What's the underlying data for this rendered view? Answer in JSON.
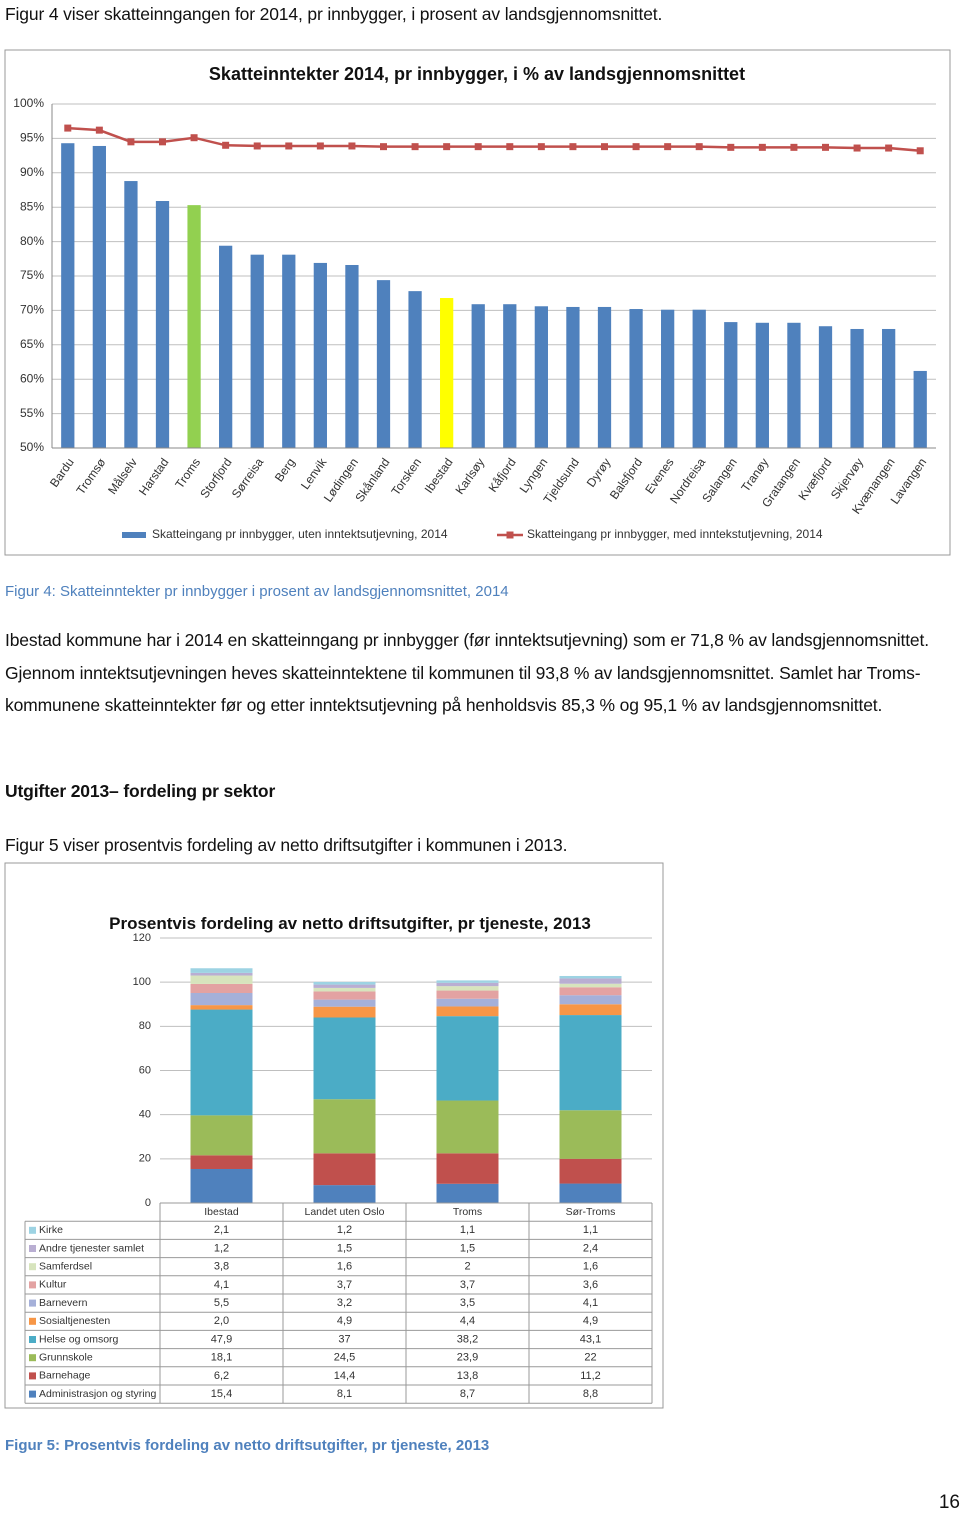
{
  "intro": "Figur 4 viser skatteinngangen for 2014, pr innbygger, i prosent av landsgjennomsnittet.",
  "chart_data": [
    {
      "type": "bar",
      "title": "Skatteinntekter  2014, pr innbygger, i % av landsgjennomsnittet",
      "categories": [
        "Bardu",
        "Tromsø",
        "Målselv",
        "Harstad",
        "Troms",
        "Storfjord",
        "Sørreisa",
        "Berg",
        "Lenvik",
        "Lødingen",
        "Skånland",
        "Torsken",
        "Ibestad",
        "Karlsøy",
        "Kåfjord",
        "Lyngen",
        "Tjeldsund",
        "Dyrøy",
        "Balsfjord",
        "Evenes",
        "Nordreisa",
        "Salangen",
        "Tranøy",
        "Gratangen",
        "Kvæfjord",
        "Skjervøy",
        "Kvænangen",
        "Lavangen"
      ],
      "series": [
        {
          "name": "Skatteingang pr innbygger, uten inntektsutjevning, 2014",
          "type": "bar",
          "color": "#4f81bd",
          "colors": [
            "#4f81bd",
            "#4f81bd",
            "#4f81bd",
            "#4f81bd",
            "#92d050",
            "#4f81bd",
            "#4f81bd",
            "#4f81bd",
            "#4f81bd",
            "#4f81bd",
            "#4f81bd",
            "#4f81bd",
            "#ffff00",
            "#4f81bd",
            "#4f81bd",
            "#4f81bd",
            "#4f81bd",
            "#4f81bd",
            "#4f81bd",
            "#4f81bd",
            "#4f81bd",
            "#4f81bd",
            "#4f81bd",
            "#4f81bd",
            "#4f81bd",
            "#4f81bd",
            "#4f81bd",
            "#4f81bd"
          ],
          "values": [
            94.3,
            93.9,
            88.8,
            85.9,
            85.3,
            79.4,
            78.1,
            78.1,
            76.9,
            76.6,
            74.4,
            72.8,
            71.8,
            70.9,
            70.9,
            70.6,
            70.5,
            70.5,
            70.2,
            70.1,
            70.1,
            68.3,
            68.2,
            68.2,
            67.7,
            67.3,
            67.3,
            61.2
          ]
        },
        {
          "name": "Skatteingang pr innbygger, med inntekstutjevning,  2014",
          "type": "line",
          "color": "#c0504d",
          "values": [
            96.5,
            96.2,
            94.5,
            94.5,
            95.1,
            94.0,
            93.9,
            93.9,
            93.9,
            93.9,
            93.8,
            93.8,
            93.8,
            93.8,
            93.8,
            93.8,
            93.8,
            93.8,
            93.8,
            93.8,
            93.8,
            93.7,
            93.7,
            93.7,
            93.7,
            93.6,
            93.6,
            93.2
          ]
        }
      ],
      "ylim": [
        50,
        100
      ],
      "yticks": [
        {
          "value": 50,
          "label": "50%"
        },
        {
          "value": 55,
          "label": "55%"
        },
        {
          "value": 60,
          "label": "60%"
        },
        {
          "value": 65,
          "label": "65%"
        },
        {
          "value": 70,
          "label": "70%"
        },
        {
          "value": 75,
          "label": "75%"
        },
        {
          "value": 80,
          "label": "80%"
        },
        {
          "value": 85,
          "label": "85%"
        },
        {
          "value": 90,
          "label": "90%"
        },
        {
          "value": 95,
          "label": "95%"
        },
        {
          "value": 100,
          "label": "100%"
        }
      ],
      "grid": true,
      "legend": "bottom"
    },
    {
      "type": "stacked_bar",
      "title": "Prosentvis fordeling av netto driftsutgifter, pr tjeneste, 2013",
      "categories": [
        "Ibestad",
        "Landet uten Oslo",
        "Troms",
        "Sør-Troms"
      ],
      "series": [
        {
          "name": "Administrasjon og styring",
          "color": "#4f81bd",
          "values": [
            15.4,
            8.1,
            8.7,
            8.8
          ],
          "value_labels": [
            "15,4",
            "8,1",
            "8,7",
            "8,8"
          ]
        },
        {
          "name": "Barnehage",
          "color": "#c0504d",
          "values": [
            6.2,
            14.4,
            13.8,
            11.2
          ],
          "value_labels": [
            "6,2",
            "14,4",
            "13,8",
            "11,2"
          ]
        },
        {
          "name": "Grunnskole",
          "color": "#9bbb59",
          "values": [
            18.1,
            24.5,
            23.9,
            22
          ],
          "value_labels": [
            "18,1",
            "24,5",
            "23,9",
            "22"
          ]
        },
        {
          "name": "Helse og omsorg",
          "color": "#4bacc6",
          "values": [
            47.9,
            37,
            38.2,
            43.1
          ],
          "value_labels": [
            "47,9",
            "37",
            "38,2",
            "43,1"
          ]
        },
        {
          "name": "Sosialtjenesten",
          "color": "#f79646",
          "values": [
            2.0,
            4.9,
            4.4,
            4.9
          ],
          "value_labels": [
            "2,0",
            "4,9",
            "4,4",
            "4,9"
          ]
        },
        {
          "name": "Barnevern",
          "color": "#a5b0d9",
          "values": [
            5.5,
            3.2,
            3.5,
            4.1
          ],
          "value_labels": [
            "5,5",
            "3,2",
            "3,5",
            "4,1"
          ]
        },
        {
          "name": "Kultur",
          "color": "#e3a2a2",
          "values": [
            4.1,
            3.7,
            3.7,
            3.6
          ],
          "value_labels": [
            "4,1",
            "3,7",
            "3,7",
            "3,6"
          ]
        },
        {
          "name": "Samferdsel",
          "color": "#d7e4bd",
          "values": [
            3.8,
            1.6,
            2,
            1.6
          ],
          "value_labels": [
            "3,8",
            "1,6",
            "2",
            "1,6"
          ]
        },
        {
          "name": "Andre tjenester samlet",
          "color": "#b9aed2",
          "values": [
            1.2,
            1.5,
            1.5,
            2.4
          ],
          "value_labels": [
            "1,2",
            "1,5",
            "1,5",
            "2,4"
          ]
        },
        {
          "name": "Kirke",
          "color": "#9dd3e3",
          "values": [
            2.1,
            1.2,
            1.1,
            1.1
          ],
          "value_labels": [
            "2,1",
            "1,2",
            "1,1",
            "1,1"
          ]
        }
      ],
      "ylim": [
        0,
        120
      ],
      "yticks": [
        0,
        20,
        40,
        60,
        80,
        100,
        120
      ],
      "grid": true,
      "data_table": true
    }
  ],
  "caption1": "Figur 4: Skatteinntekter pr innbygger i prosent av landsgjennomsnittet, 2014",
  "paragraph1": "Ibestad kommune har i 2014 en skatteinngang pr innbygger (før inntektsutjevning) som er 71,8 % av landsgjennomsnittet. Gjennom inntektsutjevningen heves skatteinntektene til kommunen til 93,8 % av landsgjennomsnittet. Samlet har Troms-kommunene skatteinntekter før og etter inntektsutjevning på henholdsvis 85,3 % og 95,1 % av landsgjennomsnittet.",
  "heading": "Utgifter 2013– fordeling pr sektor",
  "paragraph2": "Figur 5 viser prosentvis fordeling av netto driftsutgifter i kommunen i 2013.",
  "caption2": "Figur 5: Prosentvis fordeling av netto driftsutgifter, pr tjeneste, 2013",
  "page_number": "16"
}
